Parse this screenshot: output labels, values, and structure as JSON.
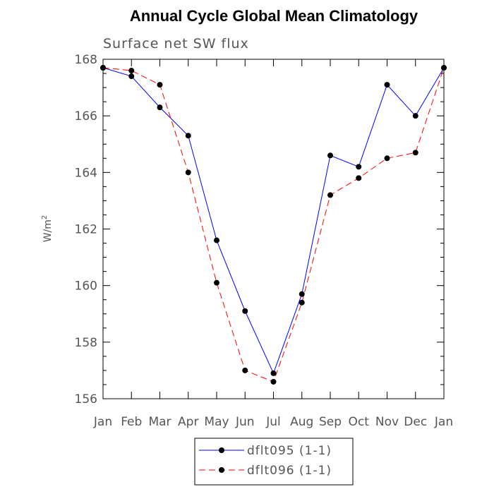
{
  "chart_data": {
    "type": "line",
    "title": "Annual Cycle Global Mean Climatology",
    "subtitle": "Surface net SW flux",
    "ylabel_base": "W/m",
    "ylabel_sup": "2",
    "categories": [
      "Jan",
      "Feb",
      "Mar",
      "Apr",
      "May",
      "Jun",
      "Jul",
      "Aug",
      "Sep",
      "Oct",
      "Nov",
      "Dec",
      "Jan"
    ],
    "ylim": [
      156,
      168
    ],
    "yticks": [
      "156",
      "158",
      "160",
      "162",
      "164",
      "166",
      "168"
    ],
    "series": [
      {
        "name": "dflt095 (1-1)",
        "color": "#0000ff",
        "dash": "solid",
        "values": [
          167.7,
          167.4,
          166.3,
          165.3,
          161.6,
          159.1,
          156.9,
          159.7,
          164.6,
          164.2,
          167.1,
          166.0,
          167.7
        ]
      },
      {
        "name": "dflt096 (1-1)",
        "color": "#ff0000",
        "dash": "dashed",
        "values": [
          167.7,
          167.6,
          167.1,
          164.0,
          160.1,
          157.0,
          156.6,
          159.4,
          163.2,
          163.8,
          164.5,
          164.7,
          167.7
        ]
      }
    ]
  }
}
